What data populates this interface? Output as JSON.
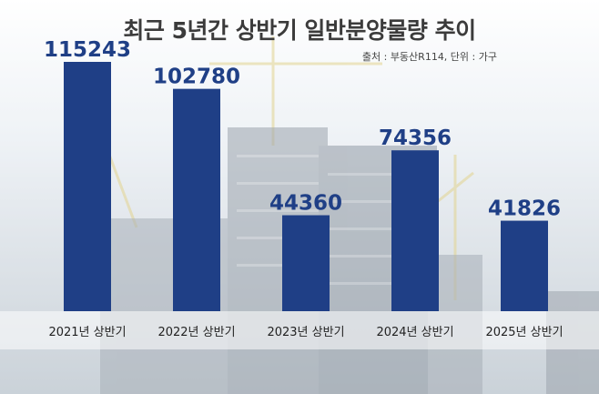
{
  "chart_data": {
    "type": "bar",
    "title": "최근 5년간 상반기 일반분양물량 추이",
    "source_note": "출처 : 부동산R114, 단위 : 가구",
    "categories": [
      "2021년 상반기",
      "2022년 상반기",
      "2023년 상반기",
      "2024년 상반기",
      "2025년 상반기"
    ],
    "values": [
      115243,
      102780,
      44360,
      74356,
      41826
    ],
    "ylim": [
      0,
      115243
    ],
    "bar_color": "#1f3f86",
    "label_color": "#1f3f86"
  }
}
